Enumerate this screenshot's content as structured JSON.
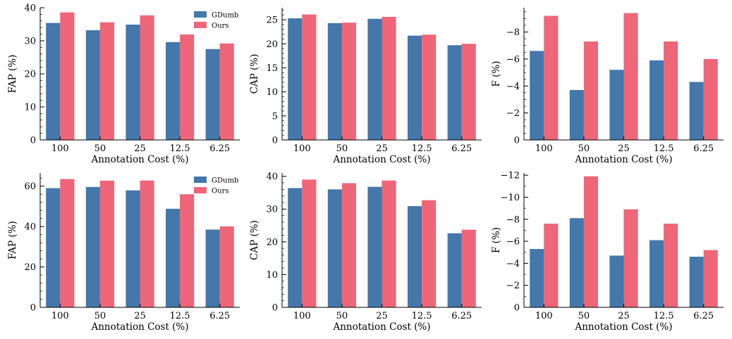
{
  "colors": {
    "gdumb": "#4477aa",
    "ours": "#ee6677",
    "axis": "#000000"
  },
  "chart_data": [
    {
      "type": "bar",
      "categories": [
        "100",
        "50",
        "25",
        "12.5",
        "6.25"
      ],
      "series": [
        {
          "name": "GDumb",
          "values": [
            35.4,
            33.2,
            34.9,
            29.6,
            27.5
          ]
        },
        {
          "name": "Ours",
          "values": [
            38.6,
            35.6,
            37.7,
            31.9,
            29.2
          ]
        }
      ],
      "xlabel": "Annotation Cost (%)",
      "ylabel": "FAP (%)",
      "ylim": [
        0,
        40
      ],
      "yticks": [
        0,
        10,
        20,
        30,
        40
      ],
      "minor_step": 2,
      "legend": "top-right",
      "grid": false
    },
    {
      "type": "bar",
      "categories": [
        "100",
        "50",
        "25",
        "12.5",
        "6.25"
      ],
      "series": [
        {
          "name": "GDumb",
          "values": [
            25.3,
            24.3,
            25.2,
            21.7,
            19.7
          ]
        },
        {
          "name": "Ours",
          "values": [
            26.1,
            24.4,
            25.6,
            21.9,
            20.0
          ]
        }
      ],
      "xlabel": "Annotation Cost (%)",
      "ylabel": "CAP (%)",
      "ylim": [
        0,
        27.5
      ],
      "yticks": [
        0,
        5,
        10,
        15,
        20,
        25
      ],
      "minor_step": 1,
      "legend": "none",
      "grid": false
    },
    {
      "type": "bar",
      "categories": [
        "100",
        "50",
        "25",
        "12.5",
        "6.25"
      ],
      "series": [
        {
          "name": "GDumb",
          "values": [
            -6.6,
            -3.7,
            -5.2,
            -5.9,
            -4.3
          ]
        },
        {
          "name": "Ours",
          "values": [
            -9.2,
            -7.3,
            -9.4,
            -7.3,
            -6.0
          ]
        }
      ],
      "xlabel": "Annotation Cost (%)",
      "ylabel": "F (%)",
      "ylim": [
        0,
        -9.8
      ],
      "yticks": [
        0,
        -2,
        -4,
        -6,
        -8
      ],
      "minor_step": 0.5,
      "legend": "none",
      "grid": false
    },
    {
      "type": "bar",
      "categories": [
        "100",
        "50",
        "25",
        "12.5",
        "6.25"
      ],
      "series": [
        {
          "name": "GDumb",
          "values": [
            59.0,
            59.6,
            57.9,
            48.8,
            38.5
          ]
        },
        {
          "name": "Ours",
          "values": [
            63.5,
            62.7,
            62.8,
            56.0,
            40.1
          ]
        }
      ],
      "xlabel": "Annotation Cost (%)",
      "ylabel": "FAP (%)",
      "ylim": [
        0,
        66.5
      ],
      "yticks": [
        0,
        20,
        40,
        60
      ],
      "minor_step": 4,
      "legend": "top-right",
      "grid": false
    },
    {
      "type": "bar",
      "categories": [
        "100",
        "50",
        "25",
        "12.5",
        "6.25"
      ],
      "series": [
        {
          "name": "GDumb",
          "values": [
            36.4,
            36.0,
            36.8,
            30.9,
            22.6
          ]
        },
        {
          "name": "Ours",
          "values": [
            39.0,
            37.9,
            38.7,
            32.7,
            23.7
          ]
        }
      ],
      "xlabel": "Annotation Cost (%)",
      "ylabel": "CAP (%)",
      "ylim": [
        0,
        41
      ],
      "yticks": [
        0,
        10,
        20,
        30,
        40
      ],
      "minor_step": 2,
      "legend": "none",
      "grid": false
    },
    {
      "type": "bar",
      "categories": [
        "100",
        "50",
        "25",
        "12.5",
        "6.25"
      ],
      "series": [
        {
          "name": "GDumb",
          "values": [
            -5.3,
            -8.1,
            -4.7,
            -6.1,
            -4.6
          ]
        },
        {
          "name": "Ours",
          "values": [
            -7.6,
            -11.9,
            -8.9,
            -7.6,
            -5.2
          ]
        }
      ],
      "xlabel": "Annotation Cost (%)",
      "ylabel": "F (%)",
      "ylim": [
        0,
        -12.2
      ],
      "yticks": [
        0,
        -2,
        -4,
        -6,
        -8,
        -10,
        -12
      ],
      "minor_step": 1,
      "legend": "none",
      "grid": false
    }
  ]
}
